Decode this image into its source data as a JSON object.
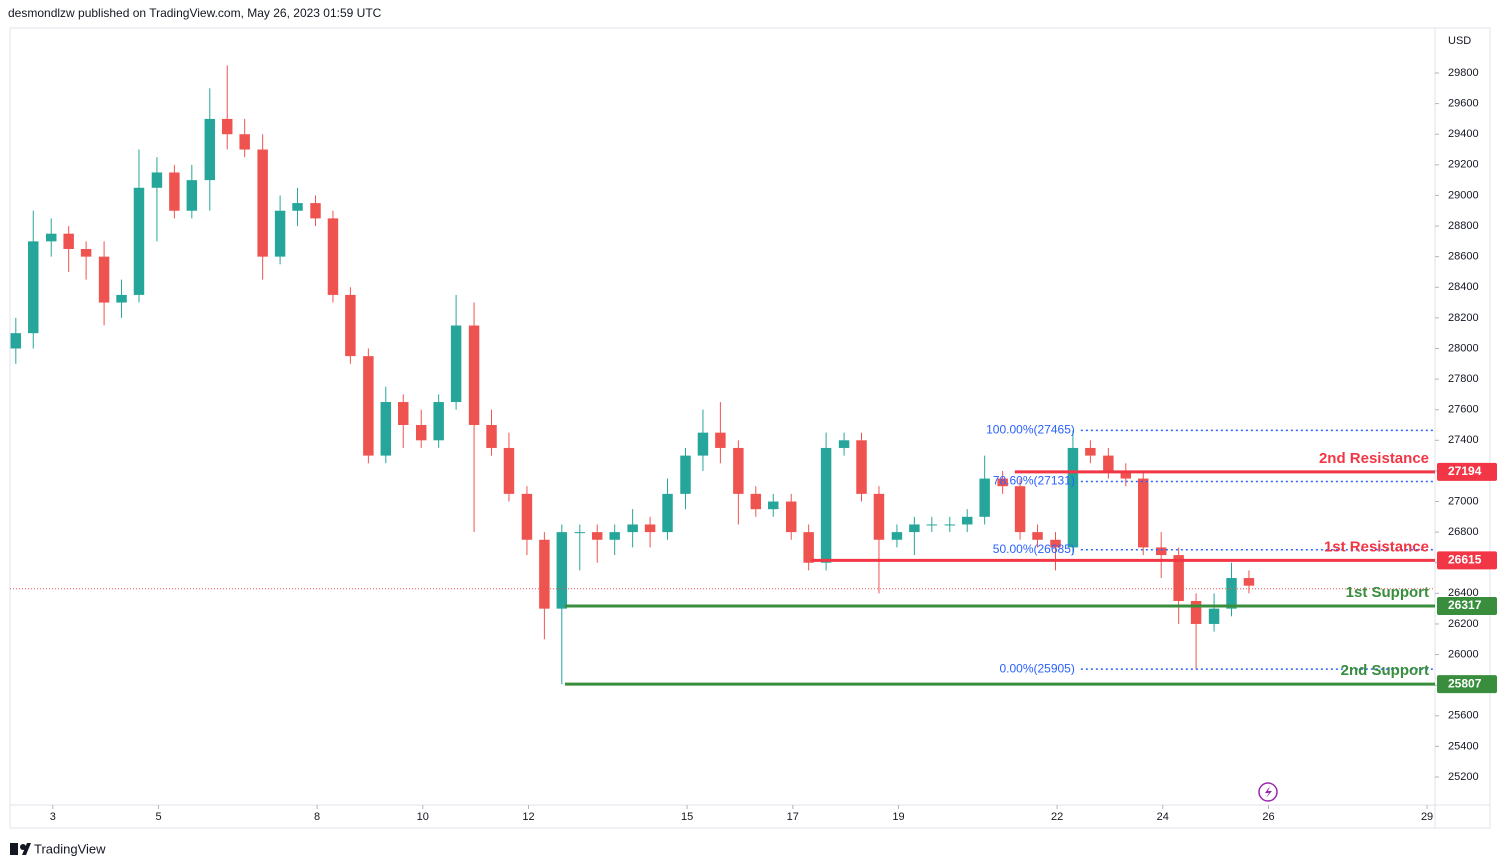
{
  "header": {
    "text": "desmondlzw published on TradingView.com, May 26, 2023 01:59 UTC"
  },
  "footer": {
    "brand": "TradingView"
  },
  "chart_data": {
    "type": "candlestick",
    "currency": "USD",
    "xlim": [
      2.19,
      29.15
    ],
    "xticks": [
      3,
      5,
      8,
      10,
      12,
      15,
      17,
      19,
      22,
      24,
      26,
      29
    ],
    "ylim": [
      25017,
      30094
    ],
    "yticks": [
      25200,
      25400,
      25600,
      25800,
      26000,
      26200,
      26400,
      26600,
      26800,
      27000,
      27200,
      27400,
      27600,
      27800,
      28000,
      28200,
      28400,
      28600,
      28800,
      29000,
      29200,
      29400,
      29600,
      29800
    ],
    "up_color": "#26a69a",
    "down_color": "#ef5350",
    "x": [
      2.3,
      2.63,
      2.97,
      3.3,
      3.63,
      3.97,
      4.3,
      4.63,
      4.97,
      5.3,
      5.63,
      5.97,
      6.3,
      6.63,
      6.97,
      7.3,
      7.63,
      7.97,
      8.3,
      8.63,
      8.97,
      9.3,
      9.63,
      9.97,
      10.3,
      10.63,
      10.97,
      11.3,
      11.63,
      11.97,
      12.3,
      12.63,
      12.97,
      13.3,
      13.63,
      13.97,
      14.3,
      14.63,
      14.97,
      15.3,
      15.63,
      15.97,
      16.3,
      16.63,
      16.97,
      17.3,
      17.63,
      17.97,
      18.3,
      18.63,
      18.97,
      19.3,
      19.63,
      19.97,
      20.3,
      20.63,
      20.97,
      21.3,
      21.63,
      21.97,
      22.3,
      22.63,
      22.97,
      23.3,
      23.63,
      23.97,
      24.3,
      24.63,
      24.97,
      25.3,
      25.63
    ],
    "open": [
      28000,
      28100,
      28700,
      28750,
      28650,
      28600,
      28300,
      28350,
      29050,
      29150,
      28900,
      29100,
      29500,
      29400,
      29300,
      28600,
      28900,
      28950,
      28850,
      28350,
      27950,
      27300,
      27650,
      27500,
      27400,
      27650,
      28150,
      27500,
      27350,
      27050,
      26750,
      26300,
      26800,
      26800,
      26750,
      26800,
      26850,
      26800,
      27050,
      27300,
      27450,
      27350,
      27050,
      26950,
      27000,
      26800,
      26600,
      27350,
      27400,
      27050,
      26750,
      26800,
      26850,
      26850,
      26850,
      26900,
      27150,
      27100,
      26800,
      26750,
      26700,
      27350,
      27300,
      27200,
      27150,
      26700,
      26650,
      26350,
      26200,
      26300,
      26500
    ],
    "high": [
      28200,
      28900,
      28850,
      28800,
      28700,
      28700,
      28450,
      29300,
      29250,
      29200,
      29200,
      29700,
      29850,
      29500,
      29400,
      29000,
      29050,
      29000,
      28900,
      28400,
      28000,
      27750,
      27700,
      27600,
      27700,
      28350,
      28300,
      27600,
      27450,
      27100,
      26800,
      26850,
      26850,
      26850,
      26850,
      26950,
      26900,
      27150,
      27350,
      27600,
      27650,
      27400,
      27100,
      27050,
      27050,
      26850,
      27450,
      27450,
      27450,
      27100,
      26850,
      26900,
      26900,
      26900,
      26950,
      27300,
      27200,
      27150,
      26850,
      26800,
      27465,
      27400,
      27350,
      27250,
      27200,
      26800,
      26700,
      26400,
      26400,
      26600,
      26550
    ],
    "low": [
      27900,
      28000,
      28600,
      28500,
      28450,
      28150,
      28200,
      28300,
      28700,
      28850,
      28850,
      28900,
      29300,
      29250,
      28450,
      28550,
      28800,
      28800,
      28300,
      27900,
      27250,
      27250,
      27350,
      27350,
      27350,
      27600,
      26800,
      27300,
      27000,
      26650,
      26100,
      25807,
      26550,
      26600,
      26650,
      26700,
      26700,
      26750,
      26950,
      27200,
      27250,
      26850,
      26900,
      26900,
      26750,
      26550,
      26550,
      27300,
      27000,
      26400,
      26700,
      26650,
      26800,
      26800,
      26800,
      26850,
      27050,
      26750,
      26700,
      26550,
      26650,
      27250,
      27150,
      27100,
      26650,
      26500,
      26200,
      25905,
      26150,
      26250,
      26400
    ],
    "close": [
      28100,
      28700,
      28750,
      28650,
      28600,
      28300,
      28350,
      29050,
      29150,
      28900,
      29100,
      29500,
      29400,
      29300,
      28600,
      28900,
      28950,
      28850,
      28350,
      27950,
      27300,
      27650,
      27500,
      27400,
      27650,
      28150,
      27500,
      27350,
      27050,
      26750,
      26300,
      26800,
      26800,
      26750,
      26800,
      26850,
      26800,
      27050,
      27300,
      27450,
      27350,
      27050,
      26950,
      27000,
      26800,
      26600,
      27350,
      27400,
      27050,
      26750,
      26800,
      26850,
      26850,
      26850,
      26900,
      27150,
      27100,
      26800,
      26750,
      26700,
      27350,
      27300,
      27200,
      27150,
      26700,
      26650,
      26350,
      26200,
      26300,
      26500,
      26450
    ],
    "last_price": 26430,
    "levels": [
      {
        "name": "2nd Resistance",
        "value": 27194,
        "color": "#f23645",
        "from": 21.2
      },
      {
        "name": "1st Resistance",
        "value": 26615,
        "color": "#f23645",
        "from": 17.35
      },
      {
        "name": "1st Support",
        "value": 26317,
        "color": "#388e3c",
        "from": 12.69
      },
      {
        "name": "2nd Support",
        "value": 25807,
        "color": "#388e3c",
        "from": 12.69
      }
    ],
    "fib": {
      "color": "#2962ff",
      "from": 22.45,
      "levels": [
        {
          "label": "100.00%(27465)",
          "value": 27465
        },
        {
          "label": "78.60%(27131)",
          "value": 27131
        },
        {
          "label": "50.00%(26685)",
          "value": 26685
        },
        {
          "label": "0.00%(25905)",
          "value": 25905
        }
      ]
    }
  }
}
